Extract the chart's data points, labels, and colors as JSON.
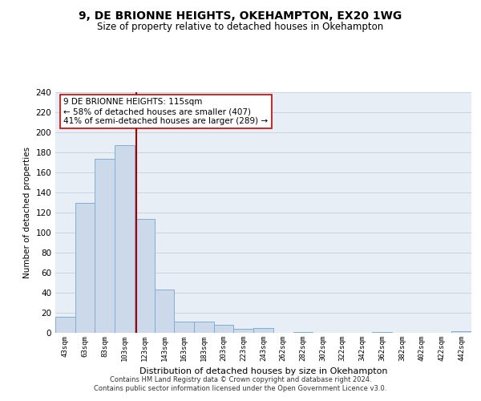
{
  "title": "9, DE BRIONNE HEIGHTS, OKEHAMPTON, EX20 1WG",
  "subtitle": "Size of property relative to detached houses in Okehampton",
  "xlabel": "Distribution of detached houses by size in Okehampton",
  "ylabel": "Number of detached properties",
  "bar_labels": [
    "43sqm",
    "63sqm",
    "83sqm",
    "103sqm",
    "123sqm",
    "143sqm",
    "163sqm",
    "183sqm",
    "203sqm",
    "223sqm",
    "243sqm",
    "262sqm",
    "282sqm",
    "302sqm",
    "322sqm",
    "342sqm",
    "362sqm",
    "382sqm",
    "402sqm",
    "422sqm",
    "442sqm"
  ],
  "bar_values": [
    16,
    130,
    174,
    187,
    114,
    43,
    11,
    11,
    8,
    4,
    5,
    0,
    1,
    0,
    0,
    0,
    1,
    0,
    0,
    0,
    2
  ],
  "bar_color": "#ccd9ea",
  "bar_edge_color": "#7fafd4",
  "vline_color": "#aa0000",
  "vline_pos": 3.6,
  "annotation_title": "9 DE BRIONNE HEIGHTS: 115sqm",
  "annotation_line1": "← 58% of detached houses are smaller (407)",
  "annotation_line2": "41% of semi-detached houses are larger (289) →",
  "annotation_box_color": "#ffffff",
  "annotation_box_edge": "#cc0000",
  "ylim": [
    0,
    240
  ],
  "yticks": [
    0,
    20,
    40,
    60,
    80,
    100,
    120,
    140,
    160,
    180,
    200,
    220,
    240
  ],
  "footer1": "Contains HM Land Registry data © Crown copyright and database right 2024.",
  "footer2": "Contains public sector information licensed under the Open Government Licence v3.0.",
  "background_color": "#ffffff",
  "plot_bg_color": "#e8eef5",
  "grid_color": "#c8d4e0"
}
